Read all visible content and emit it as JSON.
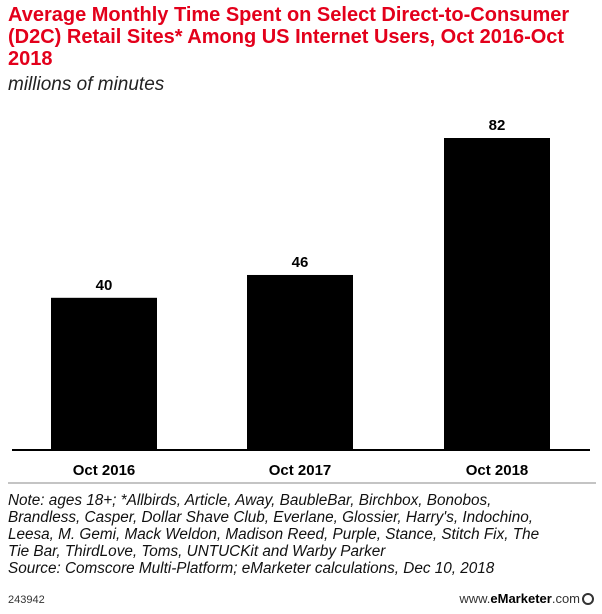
{
  "chart_data": {
    "type": "bar",
    "title": "Average Monthly Time Spent on Select Direct-to-Consumer (D2C) Retail Sites* Among US Internet Users, Oct 2016-Oct 2018",
    "subtitle": "millions of minutes",
    "categories": [
      "Oct 2016",
      "Oct 2017",
      "Oct 2018"
    ],
    "values": [
      40,
      46,
      82
    ],
    "data_labels": [
      "40",
      "46",
      "82"
    ],
    "xlabel": "",
    "ylabel": "",
    "ylim": [
      0,
      82
    ],
    "grid": false,
    "bar_color": "#000000"
  },
  "notes": {
    "line1": "Note: ages 18+; *Allbirds, Article, Away, BaubleBar, Birchbox, Bonobos,",
    "line2": "Brandless, Casper, Dollar Shave Club, Everlane, Glossier, Harry's, Indochino,",
    "line3": "Leesa, M. Gemi, Mack Weldon, Madison Reed, Purple, Stance, Stitch Fix, The",
    "line4": "Tie Bar, ThirdLove, Toms, UNTUCKit and Warby Parker",
    "source": "Source: Comscore Multi-Platform; eMarketer calculations, Dec 10, 2018"
  },
  "footer": {
    "chart_id": "243942",
    "brand_prefix": "www.",
    "brand_name": "eMarketer",
    "brand_suffix": ".com"
  }
}
